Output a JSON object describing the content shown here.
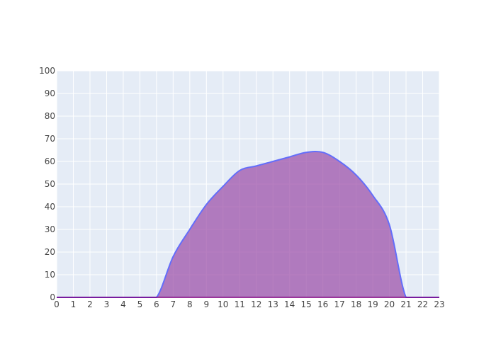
{
  "chart_data": {
    "type": "area",
    "title": "",
    "xlabel": "",
    "ylabel": "",
    "x": [
      0,
      1,
      2,
      3,
      4,
      5,
      6,
      7,
      8,
      9,
      10,
      11,
      12,
      13,
      14,
      15,
      16,
      17,
      18,
      19,
      20,
      21,
      22,
      23
    ],
    "series": [
      {
        "values": [
          0,
          0,
          0,
          0,
          0,
          0,
          0,
          18,
          30,
          41,
          49,
          56,
          58,
          60,
          62,
          64,
          64,
          60,
          54,
          45,
          32,
          0,
          0,
          0
        ]
      }
    ],
    "xlim": [
      0,
      23
    ],
    "ylim": [
      0,
      100
    ],
    "xticks": [
      "0",
      "1",
      "2",
      "3",
      "4",
      "5",
      "6",
      "7",
      "8",
      "9",
      "10",
      "11",
      "12",
      "13",
      "14",
      "15",
      "16",
      "17",
      "18",
      "19",
      "20",
      "21",
      "22",
      "23"
    ],
    "yticks": [
      "0",
      "10",
      "20",
      "30",
      "40",
      "50",
      "60",
      "70",
      "80",
      "90",
      "100"
    ],
    "grid": true,
    "legend": "none",
    "colors": {
      "plot_background": "#E5ECF6",
      "grid": "#FFFFFF",
      "line": "#636EFA",
      "fill": "#9B4DA8",
      "zero_line": "#800080",
      "tick_text": "#444444"
    }
  }
}
